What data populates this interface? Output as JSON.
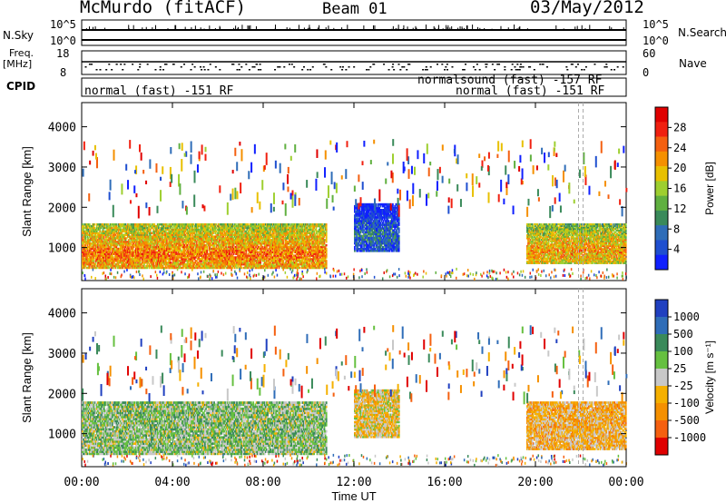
{
  "header": {
    "station": "McMurdo (fitACF)",
    "beam": "Beam 01",
    "date": "03/May/2012"
  },
  "colors": {
    "power_scale": [
      "#1020ff",
      "#1f4fd0",
      "#2f6db8",
      "#3a8a5a",
      "#60b040",
      "#9ecf30",
      "#e8c000",
      "#f59000",
      "#f46010",
      "#f02010",
      "#e00000"
    ],
    "velocity_scale": [
      "#2040c0",
      "#2f6db8",
      "#3a8a5a",
      "#66c040",
      "#c8c8c8",
      "#f5b000",
      "#f59000",
      "#f56010",
      "#e00000"
    ]
  },
  "info": {
    "nsky_label": "N.Sky",
    "nsky_ticks": [
      "10^5",
      "10^0"
    ],
    "nsearch_label": "N.Search",
    "nsearch_ticks": [
      "10^5",
      "10^0"
    ],
    "freq_label": "Freq.",
    "freq_unit": "[MHz]",
    "freq_ticks": [
      "18",
      "8"
    ],
    "nave_label": "Nave",
    "nave_ticks": [
      "60",
      "0"
    ],
    "cpid_label": "CPID",
    "cpid_runs": [
      "normal (fast) -151 RF",
      "normalsound (fast) -157 RF",
      "normal (fast) -151 RF"
    ]
  },
  "chart_data": [
    {
      "type": "heatmap",
      "title": "",
      "ylabel": "Slant Range [km]",
      "xlabel": "",
      "x_range_hours": [
        0,
        24
      ],
      "ylim": [
        180,
        4600
      ],
      "yticks": [
        "4000",
        "3000",
        "2000",
        "1000"
      ],
      "colorbar": {
        "label": "Power [dB]",
        "ticks": [
          "28",
          "24",
          "20",
          "16",
          "12",
          "8",
          "4"
        ],
        "range": [
          0,
          32
        ]
      },
      "bands": [
        {
          "start": 0.0,
          "end": 10.8,
          "low": 480,
          "high": 1600,
          "value": 24
        },
        {
          "start": 19.6,
          "end": 24.0,
          "low": 600,
          "high": 1600,
          "value": 22
        },
        {
          "start": 12.0,
          "end": 14.0,
          "low": 900,
          "high": 2100,
          "value": 8
        }
      ]
    },
    {
      "type": "heatmap",
      "title": "",
      "ylabel": "Slant Range [km]",
      "xlabel": "Time UT",
      "x_range_hours": [
        0,
        24
      ],
      "ylim": [
        180,
        4600
      ],
      "yticks": [
        "4000",
        "3000",
        "2000",
        "1000"
      ],
      "xticks": [
        "00:00",
        "04:00",
        "08:00",
        "12:00",
        "16:00",
        "20:00",
        "00:00"
      ],
      "colorbar": {
        "label": "Velocity [m s⁻¹]",
        "ticks": [
          "1000",
          "500",
          "100",
          "25",
          "-25",
          "-100",
          "-500",
          "-1000"
        ],
        "range": [
          -1200,
          1200
        ]
      },
      "bands": [
        {
          "start": 0.0,
          "end": 10.8,
          "low": 480,
          "high": 1800,
          "value": 200
        },
        {
          "start": 19.6,
          "end": 24.0,
          "low": 600,
          "high": 1800,
          "value": -300
        },
        {
          "start": 12.0,
          "end": 14.0,
          "low": 900,
          "high": 2100,
          "value": -150
        }
      ]
    }
  ]
}
